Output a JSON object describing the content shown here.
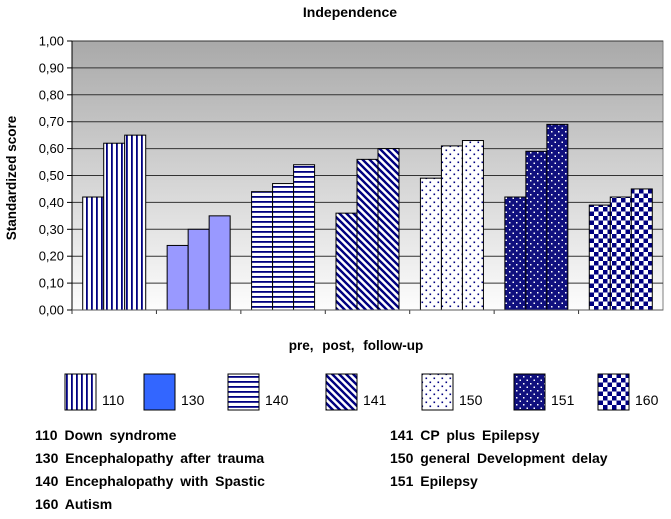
{
  "title": "Independence",
  "chart_data": {
    "type": "bar",
    "title": "Independence",
    "ylabel": "Standardized score",
    "xlabel": "pre,  post,  follow-up",
    "ylim": [
      0,
      1
    ],
    "ytick_step": 0.1,
    "decimal_separator": ",",
    "grid": true,
    "legend_position": "bottom",
    "series_labels": [
      "pre",
      "post",
      "follow-up"
    ],
    "groups": [
      {
        "code": "110",
        "diagnosis": "Down syndrome",
        "pattern": "vertical-stripes",
        "values": [
          0.42,
          0.62,
          0.65
        ]
      },
      {
        "code": "130",
        "diagnosis": "Encephalopathy after trauma",
        "pattern": "solid",
        "values": [
          0.24,
          0.3,
          0.35
        ]
      },
      {
        "code": "140",
        "diagnosis": "Encephalopathy with Spastic",
        "pattern": "horizontal-stripes",
        "values": [
          0.44,
          0.47,
          0.54
        ]
      },
      {
        "code": "141",
        "diagnosis": "CP plus Epilepsy",
        "pattern": "diagonal-stripes",
        "values": [
          0.36,
          0.56,
          0.6
        ]
      },
      {
        "code": "150",
        "diagnosis": "general Development delay",
        "pattern": "dots-light",
        "values": [
          0.49,
          0.61,
          0.63
        ]
      },
      {
        "code": "151",
        "diagnosis": "Epilepsy",
        "pattern": "dots-dark",
        "values": [
          0.42,
          0.59,
          0.69
        ]
      },
      {
        "code": "160",
        "diagnosis": "Autism",
        "pattern": "checker",
        "values": [
          0.39,
          0.42,
          0.45
        ]
      }
    ]
  },
  "notes": {
    "rows": [
      {
        "left_code": "110",
        "left_label": "Down syndrome",
        "right_code": "141",
        "right_label": "CP plus Epilepsy"
      },
      {
        "left_code": "130",
        "left_label": "Encephalopathy after trauma",
        "right_code": "150",
        "right_label": "general Development delay"
      },
      {
        "left_code": "140",
        "left_label": "Encephalopathy with Spastic",
        "right_code": "151",
        "right_label": "Epilepsy"
      },
      {
        "left_code": "160",
        "left_label": "Autism",
        "right_code": "",
        "right_label": ""
      }
    ]
  },
  "colors": {
    "pattern_navy": "#000080",
    "dark_dots_bg": "#10107E",
    "bar_light_blue": "#9999FF",
    "legend_blue": "#3366FF",
    "plot_bg_top": "#A9A9A9",
    "plot_bg_bottom": "#FDFDFD",
    "gridline": "#333333",
    "axis": "#000000",
    "plot_border": "#7F7F7F"
  }
}
